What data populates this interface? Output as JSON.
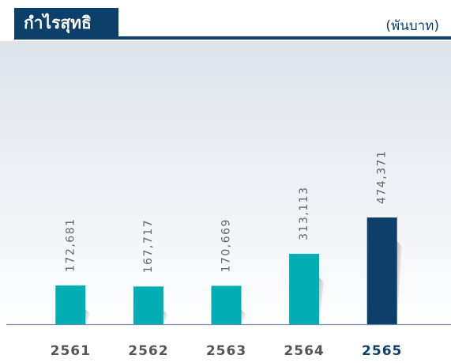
{
  "chart_data": {
    "type": "bar",
    "title": "กำไรสุทธิ",
    "unit_label": "(พันบาท)",
    "categories": [
      "2561",
      "2562",
      "2563",
      "2564",
      "2565"
    ],
    "values": [
      172681,
      167717,
      170669,
      313113,
      474371
    ],
    "value_labels": [
      "172,681",
      "167,717",
      "170,669",
      "313,113",
      "474,371"
    ],
    "colors": [
      "#00aeb3",
      "#00aeb3",
      "#00aeb3",
      "#00aeb3",
      "#0d3f6b"
    ],
    "ylim": [
      0,
      1230000
    ],
    "grid": false
  }
}
